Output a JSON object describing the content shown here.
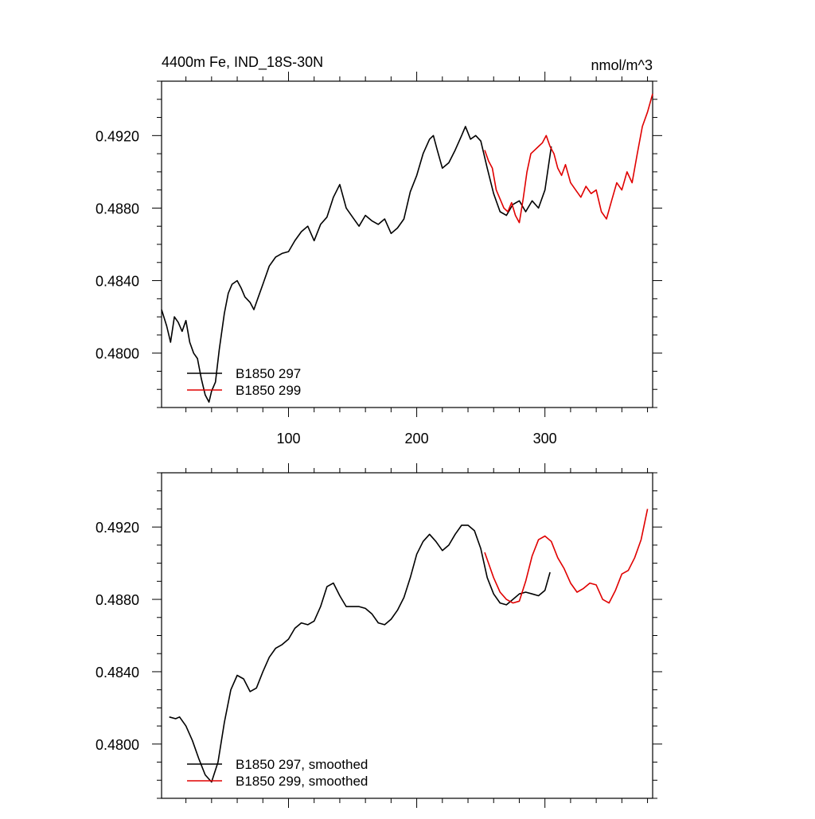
{
  "chart_data": [
    {
      "type": "line",
      "title": "4400m Fe, IND_18S-30N",
      "units": "nmol/m^3",
      "xlim": [
        1,
        384
      ],
      "ylim": [
        0.477,
        0.495
      ],
      "x_ticks": [
        100,
        200,
        300
      ],
      "x_tick_labels": [
        "100",
        "200",
        "300"
      ],
      "y_ticks": [
        0.48,
        0.484,
        0.488,
        0.492
      ],
      "y_tick_labels": [
        "0.4800",
        "0.4840",
        "0.4880",
        "0.4920"
      ],
      "legend": "bottom-left",
      "grid": false,
      "series": [
        {
          "name": "B1850 297",
          "color": "#000000",
          "x": [
            1,
            5,
            8,
            11,
            14,
            17,
            20,
            23,
            26,
            29,
            32,
            35,
            38,
            40,
            43,
            46,
            50,
            53,
            56,
            60,
            63,
            66,
            70,
            73,
            76,
            80,
            85,
            90,
            95,
            100,
            105,
            110,
            115,
            120,
            125,
            130,
            135,
            140,
            145,
            150,
            155,
            160,
            165,
            170,
            175,
            180,
            185,
            190,
            195,
            200,
            205,
            210,
            213,
            216,
            220,
            225,
            230,
            235,
            238,
            242,
            246,
            250,
            255,
            260,
            265,
            270,
            275,
            280,
            285,
            290,
            295,
            300,
            305
          ],
          "y": [
            0.4824,
            0.4815,
            0.4806,
            0.482,
            0.4817,
            0.4812,
            0.4818,
            0.4806,
            0.48,
            0.4797,
            0.4786,
            0.4777,
            0.4773,
            0.4779,
            0.4784,
            0.4802,
            0.4822,
            0.4833,
            0.4838,
            0.484,
            0.4836,
            0.4831,
            0.4828,
            0.4824,
            0.483,
            0.4838,
            0.4848,
            0.4853,
            0.4855,
            0.4856,
            0.4862,
            0.4867,
            0.487,
            0.4862,
            0.4871,
            0.4875,
            0.4886,
            0.4893,
            0.488,
            0.4875,
            0.487,
            0.4876,
            0.4873,
            0.4871,
            0.4874,
            0.4866,
            0.4869,
            0.4874,
            0.4889,
            0.4898,
            0.491,
            0.4918,
            0.492,
            0.4912,
            0.4902,
            0.4905,
            0.4912,
            0.492,
            0.4925,
            0.4918,
            0.492,
            0.4917,
            0.4902,
            0.4888,
            0.4878,
            0.4876,
            0.4882,
            0.4884,
            0.4878,
            0.4884,
            0.488,
            0.489,
            0.4914
          ]
        },
        {
          "name": "B1850 299",
          "color": "#e00000",
          "x": [
            253,
            256,
            259,
            262,
            265,
            268,
            271,
            274,
            277,
            280,
            283,
            286,
            289,
            292,
            295,
            298,
            301,
            304,
            307,
            310,
            313,
            316,
            320,
            324,
            328,
            332,
            336,
            340,
            344,
            348,
            352,
            356,
            360,
            364,
            368,
            372,
            376,
            380,
            384
          ],
          "y": [
            0.4912,
            0.4906,
            0.4902,
            0.489,
            0.4885,
            0.488,
            0.4878,
            0.4883,
            0.4876,
            0.4872,
            0.4885,
            0.49,
            0.491,
            0.4912,
            0.4914,
            0.4916,
            0.492,
            0.4914,
            0.491,
            0.4902,
            0.4898,
            0.4904,
            0.4894,
            0.489,
            0.4886,
            0.4892,
            0.4888,
            0.489,
            0.4878,
            0.4874,
            0.4884,
            0.4894,
            0.489,
            0.49,
            0.4894,
            0.491,
            0.4925,
            0.4933,
            0.4943
          ]
        }
      ]
    },
    {
      "type": "line",
      "xlim": [
        1,
        384
      ],
      "ylim": [
        0.477,
        0.495
      ],
      "y_ticks": [
        0.48,
        0.484,
        0.488,
        0.492
      ],
      "y_tick_labels": [
        "0.4800",
        "0.4840",
        "0.4880",
        "0.4920"
      ],
      "legend": "bottom-left",
      "grid": false,
      "series": [
        {
          "name": "B1850 297, smoothed",
          "color": "#000000",
          "x": [
            7,
            12,
            15,
            20,
            25,
            30,
            35,
            40,
            45,
            50,
            55,
            60,
            65,
            70,
            75,
            80,
            85,
            90,
            95,
            100,
            105,
            110,
            115,
            120,
            125,
            130,
            135,
            140,
            145,
            150,
            155,
            160,
            165,
            170,
            175,
            180,
            185,
            190,
            195,
            200,
            205,
            210,
            215,
            220,
            225,
            230,
            235,
            240,
            245,
            250,
            255,
            260,
            265,
            270,
            275,
            280,
            285,
            290,
            295,
            300,
            304
          ],
          "y": [
            0.4815,
            0.4814,
            0.4815,
            0.481,
            0.4802,
            0.4792,
            0.4783,
            0.4779,
            0.479,
            0.4812,
            0.483,
            0.4838,
            0.4836,
            0.4829,
            0.4831,
            0.484,
            0.4848,
            0.4853,
            0.4855,
            0.4858,
            0.4864,
            0.4867,
            0.4866,
            0.4868,
            0.4876,
            0.4887,
            0.4889,
            0.4882,
            0.4876,
            0.4876,
            0.4876,
            0.4875,
            0.4872,
            0.4867,
            0.4866,
            0.4869,
            0.4874,
            0.4881,
            0.4892,
            0.4905,
            0.4912,
            0.4916,
            0.4912,
            0.4907,
            0.491,
            0.4916,
            0.4921,
            0.4921,
            0.4918,
            0.4908,
            0.4892,
            0.4883,
            0.4878,
            0.4877,
            0.488,
            0.4883,
            0.4884,
            0.4883,
            0.4882,
            0.4885,
            0.4895
          ]
        },
        {
          "name": "B1850 299, smoothed",
          "color": "#e00000",
          "x": [
            253,
            256,
            260,
            265,
            270,
            275,
            280,
            285,
            290,
            295,
            300,
            305,
            310,
            315,
            320,
            325,
            330,
            335,
            340,
            345,
            350,
            355,
            360,
            365,
            370,
            375,
            380
          ],
          "y": [
            0.4906,
            0.49,
            0.4892,
            0.4884,
            0.488,
            0.4878,
            0.4879,
            0.489,
            0.4904,
            0.4913,
            0.4915,
            0.4912,
            0.4903,
            0.4897,
            0.4889,
            0.4884,
            0.4886,
            0.4889,
            0.4888,
            0.488,
            0.4878,
            0.4885,
            0.4894,
            0.4896,
            0.4903,
            0.4913,
            0.493
          ]
        }
      ]
    }
  ]
}
